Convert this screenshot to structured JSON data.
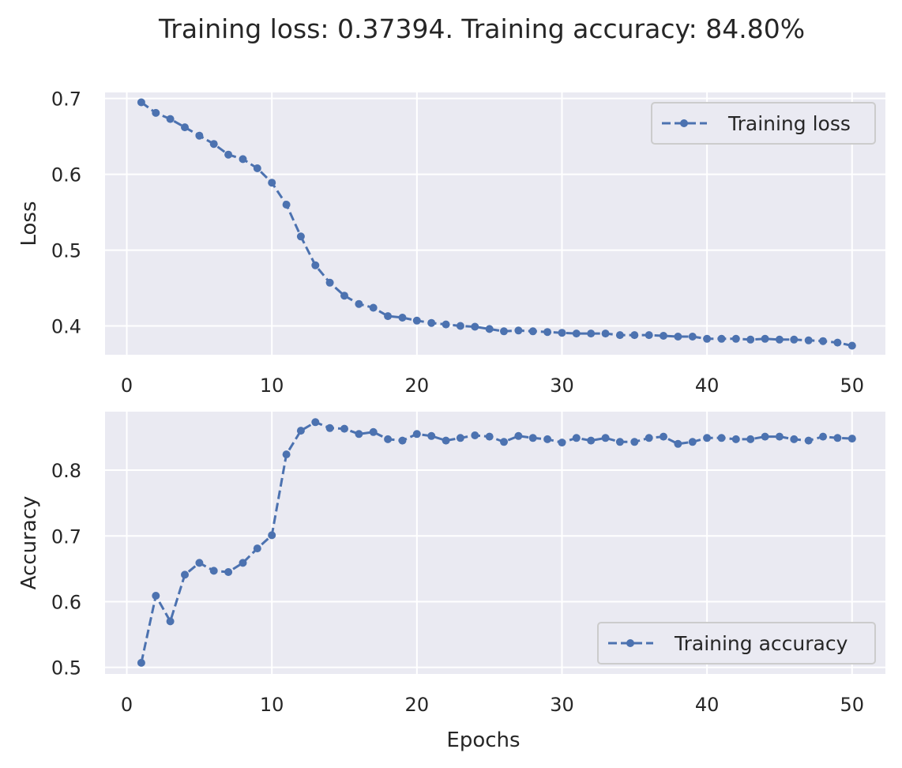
{
  "suptitle": "Training loss: 0.37394. Training accuracy: 84.80%",
  "colors": {
    "series": "#4c72b0",
    "plot_background": "#eaeaf2",
    "grid": "#ffffff",
    "text": "#262626"
  },
  "chart_data": [
    {
      "type": "line",
      "line_style": "dashed",
      "marker": "circle",
      "xlabel": "",
      "ylabel": "Loss",
      "xlim": [
        -1.5,
        52.3
      ],
      "ylim": [
        0.362,
        0.708
      ],
      "xticks": [
        0,
        10,
        20,
        30,
        40,
        50
      ],
      "yticks": [
        0.4,
        0.5,
        0.6,
        0.7
      ],
      "ytick_labels": [
        "0.4",
        "0.5",
        "0.6",
        "0.7"
      ],
      "grid": true,
      "legend_position": "upper right",
      "series": [
        {
          "name": "Training loss",
          "x": [
            1,
            2,
            3,
            4,
            5,
            6,
            7,
            8,
            9,
            10,
            11,
            12,
            13,
            14,
            15,
            16,
            17,
            18,
            19,
            20,
            21,
            22,
            23,
            24,
            25,
            26,
            27,
            28,
            29,
            30,
            31,
            32,
            33,
            34,
            35,
            36,
            37,
            38,
            39,
            40,
            41,
            42,
            43,
            44,
            45,
            46,
            47,
            48,
            49,
            50
          ],
          "y": [
            0.695,
            0.681,
            0.673,
            0.662,
            0.651,
            0.64,
            0.626,
            0.62,
            0.608,
            0.589,
            0.56,
            0.518,
            0.48,
            0.457,
            0.44,
            0.429,
            0.424,
            0.413,
            0.411,
            0.407,
            0.404,
            0.402,
            0.4,
            0.399,
            0.396,
            0.393,
            0.394,
            0.393,
            0.392,
            0.391,
            0.39,
            0.39,
            0.39,
            0.388,
            0.388,
            0.388,
            0.387,
            0.386,
            0.386,
            0.383,
            0.383,
            0.383,
            0.382,
            0.383,
            0.382,
            0.382,
            0.381,
            0.38,
            0.378,
            0.374
          ]
        }
      ]
    },
    {
      "type": "line",
      "line_style": "dashed",
      "marker": "circle",
      "xlabel": "Epochs",
      "ylabel": "Accuracy",
      "xlim": [
        -1.5,
        52.3
      ],
      "ylim": [
        0.49,
        0.889
      ],
      "xticks": [
        0,
        10,
        20,
        30,
        40,
        50
      ],
      "yticks": [
        0.5,
        0.6,
        0.7,
        0.8
      ],
      "ytick_labels": [
        "0.5",
        "0.6",
        "0.7",
        "0.8"
      ],
      "grid": true,
      "legend_position": "lower right",
      "series": [
        {
          "name": "Training accuracy",
          "x": [
            1,
            2,
            3,
            4,
            5,
            6,
            7,
            8,
            9,
            10,
            11,
            12,
            13,
            14,
            15,
            16,
            17,
            18,
            19,
            20,
            21,
            22,
            23,
            24,
            25,
            26,
            27,
            28,
            29,
            30,
            31,
            32,
            33,
            34,
            35,
            36,
            37,
            38,
            39,
            40,
            41,
            42,
            43,
            44,
            45,
            46,
            47,
            48,
            49,
            50
          ],
          "y": [
            0.507,
            0.609,
            0.57,
            0.641,
            0.659,
            0.647,
            0.645,
            0.659,
            0.681,
            0.701,
            0.824,
            0.86,
            0.873,
            0.864,
            0.863,
            0.855,
            0.858,
            0.847,
            0.845,
            0.855,
            0.852,
            0.845,
            0.849,
            0.853,
            0.851,
            0.843,
            0.852,
            0.849,
            0.847,
            0.842,
            0.849,
            0.845,
            0.849,
            0.843,
            0.843,
            0.849,
            0.851,
            0.84,
            0.843,
            0.849,
            0.849,
            0.847,
            0.847,
            0.851,
            0.851,
            0.847,
            0.845,
            0.851,
            0.849,
            0.848
          ]
        }
      ]
    }
  ]
}
